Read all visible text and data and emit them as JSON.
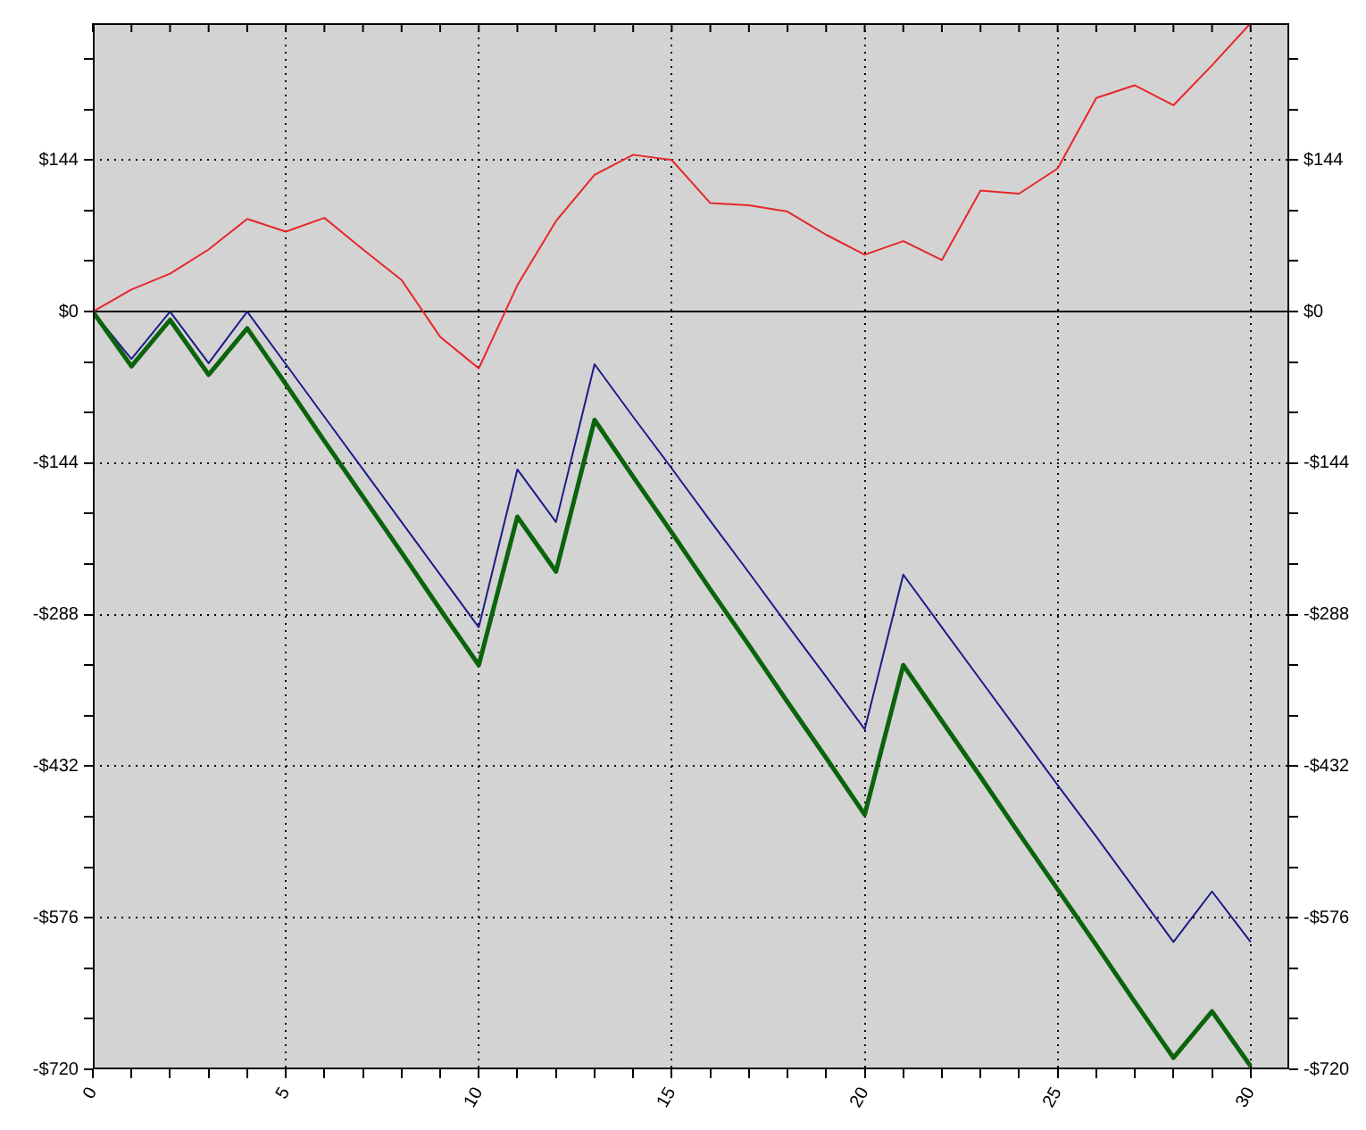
{
  "chart_data": {
    "type": "line",
    "x": [
      0,
      1,
      2,
      3,
      4,
      5,
      6,
      7,
      8,
      9,
      10,
      11,
      12,
      13,
      14,
      15,
      16,
      17,
      18,
      19,
      20,
      21,
      22,
      23,
      24,
      25,
      26,
      27,
      28,
      29,
      30
    ],
    "series": [
      {
        "color": "#e8262a",
        "values": [
          0,
          21,
          36,
          59,
          88,
          76,
          89,
          59,
          30,
          -24,
          -54,
          25,
          86,
          130,
          149,
          144,
          103,
          101,
          95,
          73,
          54,
          67,
          49,
          115,
          112,
          136,
          203,
          215,
          196,
          234,
          274
        ]
      },
      {
        "color": "#1c1c8a",
        "values": [
          0,
          -45,
          0,
          -49,
          0,
          -50,
          -100,
          -150,
          -200,
          -250,
          -300,
          -150,
          -200,
          -50,
          -100,
          -149,
          -199,
          -248,
          -298,
          -347,
          -397,
          -250,
          -300,
          -350,
          -400,
          -450,
          -499,
          -549,
          -599,
          -551,
          -599
        ]
      },
      {
        "color": "#0b640b",
        "values": [
          0,
          -52,
          -8,
          -60,
          -16,
          -69,
          -123,
          -176,
          -229,
          -283,
          -336,
          -195,
          -247,
          -103,
          -157,
          -210,
          -264,
          -317,
          -371,
          -424,
          -478,
          -336,
          -389,
          -442,
          -496,
          -549,
          -602,
          -656,
          -709,
          -665,
          -717
        ]
      }
    ],
    "xlim": [
      0,
      31
    ],
    "xticks": [
      0,
      {
        "value": 1,
        "label": null
      },
      {
        "value": 2,
        "label": null
      },
      {
        "value": 3,
        "label": null
      },
      {
        "value": 4,
        "label": null
      },
      5,
      {
        "value": 6,
        "label": null
      },
      {
        "value": 7,
        "label": null
      },
      {
        "value": 8,
        "label": null
      },
      {
        "value": 9,
        "label": null
      },
      10,
      {
        "value": 11,
        "label": null
      },
      {
        "value": 12,
        "label": null
      },
      {
        "value": 13,
        "label": null
      },
      {
        "value": 14,
        "label": null
      },
      15,
      {
        "value": 16,
        "label": null
      },
      {
        "value": 17,
        "label": null
      },
      {
        "value": 18,
        "label": null
      },
      {
        "value": 19,
        "label": null
      },
      20,
      {
        "value": 21,
        "label": null
      },
      {
        "value": 22,
        "label": null
      },
      {
        "value": 23,
        "label": null
      },
      {
        "value": 24,
        "label": null
      },
      25,
      {
        "value": 26,
        "label": null
      },
      {
        "value": 27,
        "label": null
      },
      {
        "value": 28,
        "label": null
      },
      {
        "value": 29,
        "label": null
      },
      30
    ],
    "ylim": [
      -720,
      274
    ],
    "yticks": [
      {
        "value": -720,
        "label": "-$720"
      },
      {
        "value": -672,
        "label": null
      },
      {
        "value": -624,
        "label": null
      },
      {
        "value": -576,
        "label": "-$576"
      },
      {
        "value": -528,
        "label": null
      },
      {
        "value": -480,
        "label": null
      },
      {
        "value": -432,
        "label": "-$432"
      },
      {
        "value": -384,
        "label": null
      },
      {
        "value": -336,
        "label": null
      },
      {
        "value": -288,
        "label": "-$288"
      },
      {
        "value": -240,
        "label": null
      },
      {
        "value": -192,
        "label": null
      },
      {
        "value": -144,
        "label": "-$144"
      },
      {
        "value": -96,
        "label": null
      },
      {
        "value": -48,
        "label": null
      },
      {
        "value": 0,
        "label": "$0"
      },
      {
        "value": 48,
        "label": null
      },
      {
        "value": 96,
        "label": null
      },
      {
        "value": 144,
        "label": "$144"
      },
      {
        "value": 192,
        "label": null
      },
      {
        "value": 240,
        "label": null
      }
    ],
    "y2lim": [
      -720,
      274
    ],
    "y2ticks": [
      {
        "value": -720,
        "label": "-$720"
      },
      {
        "value": -672,
        "label": null
      },
      {
        "value": -624,
        "label": null
      },
      {
        "value": -576,
        "label": "-$576"
      },
      {
        "value": -528,
        "label": null
      },
      {
        "value": -480,
        "label": null
      },
      {
        "value": -432,
        "label": "-$432"
      },
      {
        "value": -384,
        "label": null
      },
      {
        "value": -336,
        "label": null
      },
      {
        "value": -288,
        "label": "-$288"
      },
      {
        "value": -240,
        "label": null
      },
      {
        "value": -192,
        "label": null
      },
      {
        "value": -144,
        "label": "-$144"
      },
      {
        "value": -96,
        "label": null
      },
      {
        "value": -48,
        "label": null
      },
      {
        "value": 0,
        "label": "$0"
      },
      {
        "value": 48,
        "label": null
      },
      {
        "value": 96,
        "label": null
      },
      {
        "value": 144,
        "label": "$144"
      },
      {
        "value": 192,
        "label": null
      },
      {
        "value": 240,
        "label": null
      }
    ],
    "ref_lines": [
      {
        "axis": "y",
        "value": 0,
        "color": "#000000",
        "line_style": "solid"
      }
    ],
    "grid": true,
    "legend": false,
    "marker": "none",
    "line_style": "solid"
  }
}
